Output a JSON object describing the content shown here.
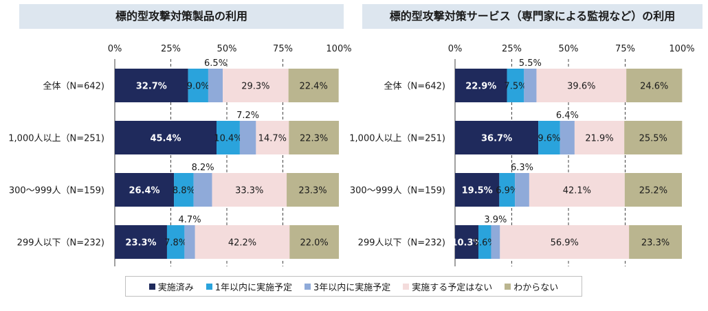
{
  "colors": [
    "#1f2a5c",
    "#2aa3dc",
    "#8faad9",
    "#f4dcdc",
    "#bab58f"
  ],
  "legend": [
    "実施済み",
    "1年以内に実施予定",
    "3年以内に実施予定",
    "実施する予定はない",
    "わからない"
  ],
  "chart_data": [
    {
      "type": "bar",
      "orientation": "horizontal",
      "stacked": true,
      "title": "標的型攻撃対策製品の利用",
      "categories": [
        "全体（N=642)",
        "1,000人以上（N=251)",
        "300～999人（N=159)",
        "299人以下（N=232)"
      ],
      "xlim": [
        0,
        100
      ],
      "ticks": [
        "0%",
        "25%",
        "50%",
        "75%",
        "100%"
      ],
      "series": [
        {
          "name": "実施済み",
          "values": [
            32.7,
            45.4,
            26.4,
            23.3
          ],
          "labels": [
            "32.7%",
            "45.4%",
            "26.4%",
            "23.3%"
          ]
        },
        {
          "name": "1年以内に実施予定",
          "values": [
            9.0,
            10.4,
            8.8,
            7.8
          ],
          "labels": [
            "9.0%",
            "10.4%",
            "8.8%",
            "7.8%"
          ]
        },
        {
          "name": "3年以内に実施予定",
          "values": [
            6.5,
            7.2,
            8.2,
            4.7
          ],
          "labels": [
            "6.5%",
            "7.2%",
            "8.2%",
            "4.7%"
          ]
        },
        {
          "name": "実施する予定はない",
          "values": [
            29.3,
            14.7,
            33.3,
            42.2
          ],
          "labels": [
            "29.3%",
            "14.7%",
            "33.3%",
            "42.2%"
          ]
        },
        {
          "name": "わからない",
          "values": [
            22.4,
            22.3,
            23.3,
            22.0
          ],
          "labels": [
            "22.4%",
            "22.3%",
            "23.3%",
            "22.0%"
          ]
        }
      ]
    },
    {
      "type": "bar",
      "orientation": "horizontal",
      "stacked": true,
      "title": "標的型攻撃対策サービス（専門家による監視など）の利用",
      "categories": [
        "全体（N=642)",
        "1,000人以上（N=251)",
        "300～999人（N=159)",
        "299人以下（N=232)"
      ],
      "xlim": [
        0,
        100
      ],
      "ticks": [
        "0%",
        "25%",
        "50%",
        "75%",
        "100%"
      ],
      "series": [
        {
          "name": "実施済み",
          "values": [
            22.9,
            36.7,
            19.5,
            10.3
          ],
          "labels": [
            "22.9%",
            "36.7%",
            "19.5%",
            "10.3%"
          ]
        },
        {
          "name": "1年以内に実施予定",
          "values": [
            7.5,
            9.6,
            6.9,
            5.6
          ],
          "labels": [
            "7.5%",
            "9.6%",
            "6.9%",
            "5.6%"
          ]
        },
        {
          "name": "3年以内に実施予定",
          "values": [
            5.5,
            6.4,
            6.3,
            3.9
          ],
          "labels": [
            "5.5%",
            "6.4%",
            "6.3%",
            "3.9%"
          ]
        },
        {
          "name": "実施する予定はない",
          "values": [
            39.6,
            21.9,
            42.1,
            56.9
          ],
          "labels": [
            "39.6%",
            "21.9%",
            "42.1%",
            "56.9%"
          ]
        },
        {
          "name": "わからない",
          "values": [
            24.6,
            25.5,
            25.2,
            23.3
          ],
          "labels": [
            "24.6%",
            "25.5%",
            "25.2%",
            "23.3%"
          ]
        }
      ]
    }
  ]
}
